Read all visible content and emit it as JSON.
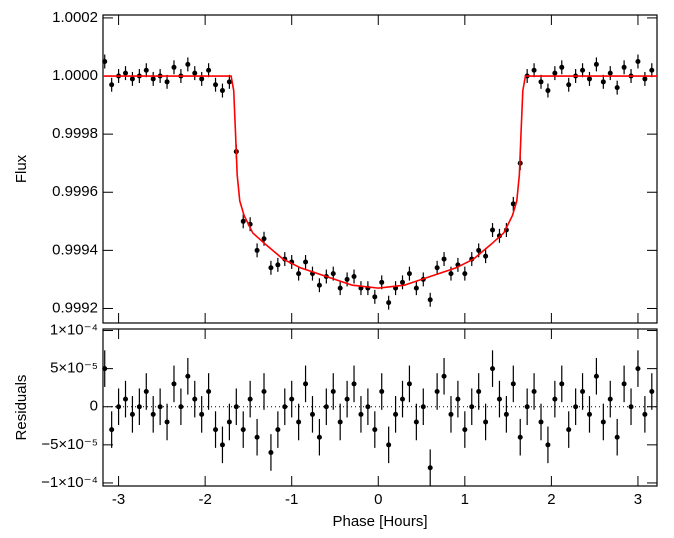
{
  "chart_data": [
    {
      "type": "scatter",
      "ylabel": "Flux",
      "color": "#000000",
      "yerr": 2.4e-05,
      "x": [
        -3.16,
        -3.08,
        -3.0,
        -2.92,
        -2.84,
        -2.76,
        -2.68,
        -2.6,
        -2.52,
        -2.44,
        -2.36,
        -2.28,
        -2.2,
        -2.12,
        -2.04,
        -1.96,
        -1.88,
        -1.8,
        -1.72,
        -1.64,
        -1.56,
        -1.48,
        -1.4,
        -1.32,
        -1.24,
        -1.16,
        -1.08,
        -1.0,
        -0.92,
        -0.84,
        -0.76,
        -0.68,
        -0.6,
        -0.52,
        -0.44,
        -0.36,
        -0.28,
        -0.2,
        -0.12,
        -0.04,
        0.04,
        0.12,
        0.2,
        0.28,
        0.36,
        0.44,
        0.52,
        0.6,
        0.68,
        0.76,
        0.84,
        0.92,
        1.0,
        1.08,
        1.16,
        1.24,
        1.32,
        1.4,
        1.48,
        1.56,
        1.64,
        1.72,
        1.8,
        1.88,
        1.96,
        2.04,
        2.12,
        2.2,
        2.28,
        2.36,
        2.44,
        2.52,
        2.6,
        2.68,
        2.76,
        2.84,
        2.92,
        3.0,
        3.08,
        3.16
      ],
      "values": [
        1.00005,
        0.99997,
        1.0,
        1.00001,
        0.99999,
        1.0,
        1.00002,
        0.99999,
        1.0,
        0.99998,
        1.00003,
        1.0,
        1.00004,
        1.00001,
        0.99999,
        1.00002,
        0.99997,
        0.99995,
        0.99998,
        0.99974,
        0.9995,
        0.99949,
        0.9994,
        0.99944,
        0.99934,
        0.99935,
        0.99937,
        0.99936,
        0.99932,
        0.99936,
        0.99932,
        0.99928,
        0.99931,
        0.99932,
        0.99927,
        0.9993,
        0.99931,
        0.99927,
        0.99927,
        0.99924,
        0.99929,
        0.99922,
        0.99927,
        0.99929,
        0.99932,
        0.99927,
        0.9993,
        0.99923,
        0.99934,
        0.99937,
        0.99932,
        0.99935,
        0.99932,
        0.99937,
        0.9994,
        0.99938,
        0.99947,
        0.99945,
        0.99947,
        0.99956,
        0.9997,
        1.0,
        1.00002,
        0.99998,
        0.99995,
        1.00001,
        1.00003,
        0.99997,
        1.0,
        1.00002,
        0.99999,
        1.00004,
        0.99998,
        1.00001,
        0.99996,
        1.00003,
        1.0,
        1.00005,
        0.99999,
        1.00002
      ],
      "model": {
        "color": "#ff0000",
        "x": [
          -3.18,
          -1.7,
          -1.67,
          -1.65,
          -1.63,
          -1.6,
          -1.55,
          -1.45,
          -1.3,
          -1.1,
          -0.9,
          -0.6,
          -0.3,
          0,
          0.3,
          0.6,
          0.9,
          1.1,
          1.3,
          1.45,
          1.55,
          1.6,
          1.63,
          1.65,
          1.67,
          1.7,
          3.22
        ],
        "values": [
          1.0,
          1.0,
          0.99995,
          0.99981,
          0.99966,
          0.99957,
          0.99952,
          0.99946,
          0.99942,
          0.99937,
          0.99934,
          0.99931,
          0.99928,
          0.99927,
          0.99928,
          0.99931,
          0.99934,
          0.99937,
          0.99942,
          0.99946,
          0.99952,
          0.99957,
          0.99966,
          0.99981,
          0.99995,
          1.0,
          1.0
        ]
      },
      "xlim": [
        -3.18,
        3.22
      ],
      "xticks": [
        -3,
        -2,
        -1,
        0,
        1,
        2,
        3
      ],
      "ylim": [
        0.99915,
        1.00021
      ],
      "yticks": [
        1.0002,
        {
          "value": 1.0,
          "label": "1.0000"
        },
        0.9998,
        0.9996,
        0.9994,
        0.9992
      ]
    },
    {
      "type": "scatter",
      "ylabel": "Residuals",
      "xlabel": "Phase [Hours]",
      "color": "#000000",
      "yerr": 2.4e-05,
      "x": [
        -3.16,
        -3.08,
        -3.0,
        -2.92,
        -2.84,
        -2.76,
        -2.68,
        -2.6,
        -2.52,
        -2.44,
        -2.36,
        -2.28,
        -2.2,
        -2.12,
        -2.04,
        -1.96,
        -1.88,
        -1.8,
        -1.72,
        -1.64,
        -1.56,
        -1.48,
        -1.4,
        -1.32,
        -1.24,
        -1.16,
        -1.08,
        -1.0,
        -0.92,
        -0.84,
        -0.76,
        -0.68,
        -0.6,
        -0.52,
        -0.44,
        -0.36,
        -0.28,
        -0.2,
        -0.12,
        -0.04,
        0.04,
        0.12,
        0.2,
        0.28,
        0.36,
        0.44,
        0.52,
        0.6,
        0.68,
        0.76,
        0.84,
        0.92,
        1.0,
        1.08,
        1.16,
        1.24,
        1.32,
        1.4,
        1.48,
        1.56,
        1.64,
        1.72,
        1.8,
        1.88,
        1.96,
        2.04,
        2.12,
        2.2,
        2.28,
        2.36,
        2.44,
        2.52,
        2.6,
        2.68,
        2.76,
        2.84,
        2.92,
        3.0,
        3.08,
        3.16
      ],
      "values": [
        5e-05,
        -3e-05,
        0,
        1e-05,
        -1e-05,
        0,
        2e-05,
        -1e-05,
        0,
        -2e-05,
        3e-05,
        0,
        4e-05,
        1e-05,
        -1e-05,
        2e-05,
        -3e-05,
        -5e-05,
        -2e-05,
        0,
        -3e-05,
        1e-05,
        -4e-05,
        2e-05,
        -6e-05,
        -3e-05,
        0,
        1e-05,
        -2e-05,
        3e-05,
        -1e-05,
        -4e-05,
        0,
        2e-05,
        -2e-05,
        1e-05,
        3e-05,
        -1e-05,
        0,
        -3e-05,
        2e-05,
        -5e-05,
        -1e-05,
        1e-05,
        3e-05,
        -2e-05,
        0,
        -8e-05,
        2e-05,
        4e-05,
        -1e-05,
        1e-05,
        -3e-05,
        0,
        2e-05,
        -2e-05,
        5e-05,
        1e-05,
        -1e-05,
        3e-05,
        -4e-05,
        0,
        2e-05,
        -2e-05,
        -5e-05,
        1e-05,
        3e-05,
        -3e-05,
        0,
        2e-05,
        -1e-05,
        4e-05,
        -2e-05,
        1e-05,
        -4e-05,
        3e-05,
        0,
        5e-05,
        -1e-05,
        2e-05
      ],
      "xlim": [
        -3.18,
        3.22
      ],
      "xticks": [
        -3,
        -2,
        -1,
        0,
        1,
        2,
        3
      ],
      "ylim": [
        -0.000104,
        0.000102
      ],
      "yticks": [
        {
          "value": 0.0001,
          "label": "1×10⁻⁴"
        },
        {
          "value": 5e-05,
          "label": "5×10⁻⁵"
        },
        0,
        {
          "value": -5e-05,
          "label": "−5×10⁻⁵"
        },
        {
          "value": -0.0001,
          "label": "−1×10⁻⁴"
        }
      ]
    }
  ]
}
